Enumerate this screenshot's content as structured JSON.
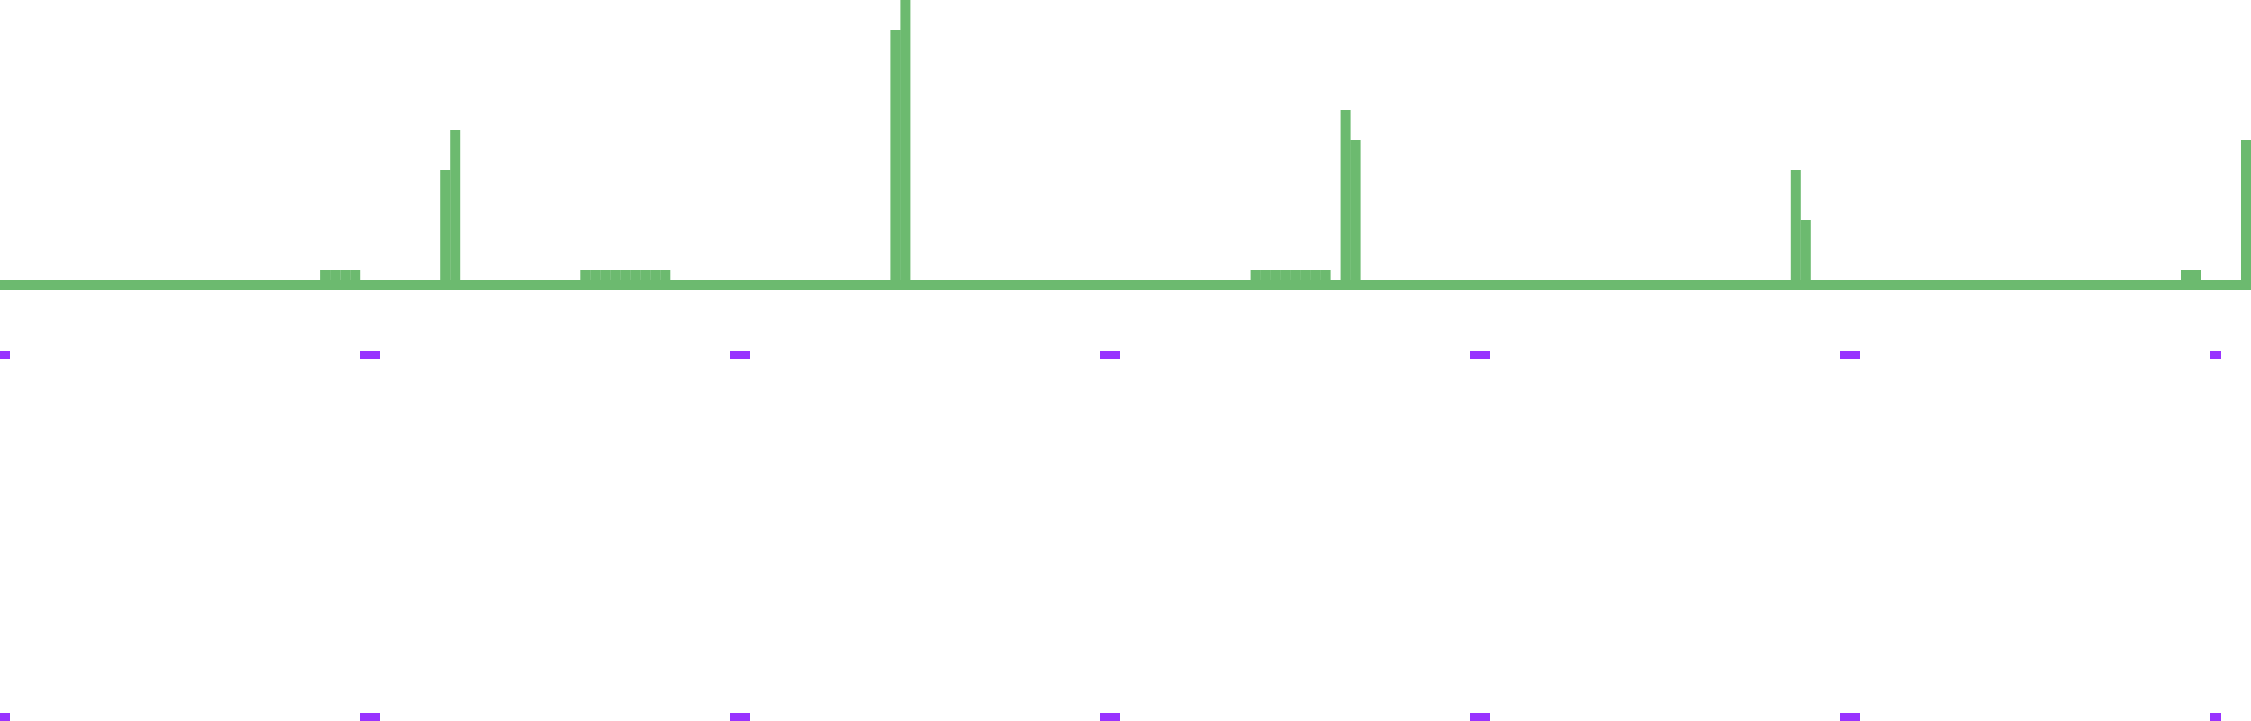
{
  "chart_data": {
    "type": "bar",
    "title": "",
    "xlabel": "",
    "ylabel": "",
    "bin_count": 225,
    "ylim": [
      0,
      28
    ],
    "grid": false,
    "legend": "none",
    "bars": [
      {
        "bin": 32,
        "value": 1
      },
      {
        "bin": 33,
        "value": 1
      },
      {
        "bin": 34,
        "value": 1
      },
      {
        "bin": 35,
        "value": 1
      },
      {
        "bin": 44,
        "value": 11
      },
      {
        "bin": 45,
        "value": 15
      },
      {
        "bin": 58,
        "value": 1
      },
      {
        "bin": 59,
        "value": 1
      },
      {
        "bin": 60,
        "value": 1
      },
      {
        "bin": 61,
        "value": 1
      },
      {
        "bin": 62,
        "value": 1
      },
      {
        "bin": 63,
        "value": 1
      },
      {
        "bin": 64,
        "value": 1
      },
      {
        "bin": 65,
        "value": 1
      },
      {
        "bin": 66,
        "value": 1
      },
      {
        "bin": 89,
        "value": 25
      },
      {
        "bin": 90,
        "value": 28
      },
      {
        "bin": 125,
        "value": 1
      },
      {
        "bin": 126,
        "value": 1
      },
      {
        "bin": 127,
        "value": 1
      },
      {
        "bin": 128,
        "value": 1
      },
      {
        "bin": 129,
        "value": 1
      },
      {
        "bin": 130,
        "value": 1
      },
      {
        "bin": 131,
        "value": 1
      },
      {
        "bin": 132,
        "value": 1
      },
      {
        "bin": 134,
        "value": 17
      },
      {
        "bin": 135,
        "value": 14
      },
      {
        "bin": 179,
        "value": 11
      },
      {
        "bin": 180,
        "value": 6
      },
      {
        "bin": 218,
        "value": 1
      },
      {
        "bin": 219,
        "value": 1
      },
      {
        "bin": 224,
        "value": 14
      }
    ],
    "tick_marks_count": 7,
    "colors": {
      "bars": "#6cba6f",
      "ticks": "#9933ff",
      "background": "#ffffff"
    }
  }
}
